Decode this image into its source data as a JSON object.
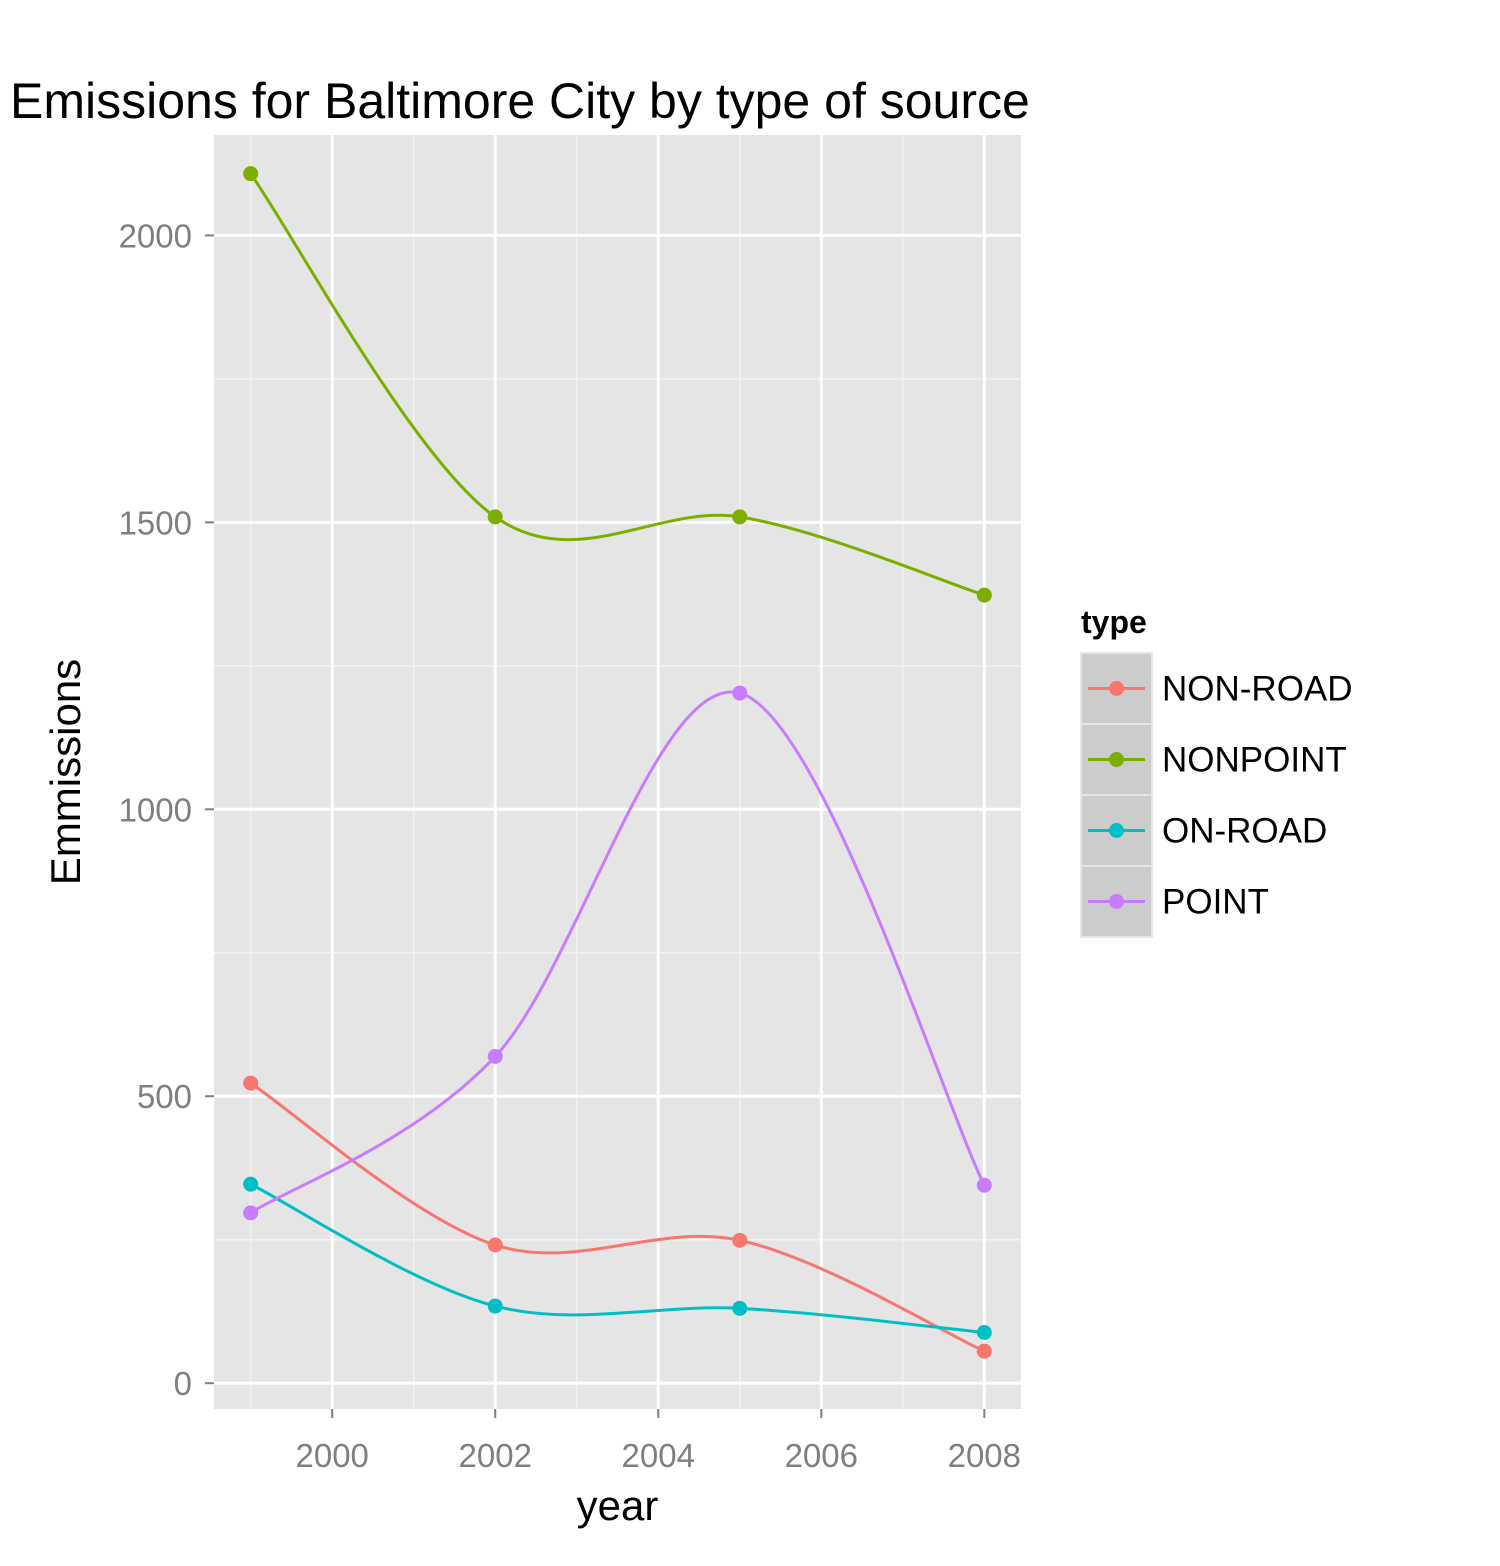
{
  "chart_data": {
    "type": "line",
    "title": "Emissions for Baltimore City by type of source",
    "xlabel": "year",
    "ylabel": "Emmissions",
    "x": [
      1999,
      2002,
      2005,
      2008
    ],
    "xlim": [
      1998.55,
      2008.45
    ],
    "ylim": [
      -45,
      2175
    ],
    "x_ticks": [
      2000,
      2002,
      2004,
      2006,
      2008
    ],
    "y_ticks": [
      0,
      500,
      1000,
      1500,
      2000
    ],
    "grid": true,
    "smoothed": true,
    "legend_title": "type",
    "legend_position": "right",
    "series": [
      {
        "name": "NON-ROAD",
        "color": "#F8766D",
        "values": [
          522.9,
          240.8,
          248.9,
          55.8
        ]
      },
      {
        "name": "NONPOINT",
        "color": "#7CAE00",
        "values": [
          2107.6,
          1509.5,
          1509.5,
          1373.2
        ]
      },
      {
        "name": "ON-ROAD",
        "color": "#00BFC4",
        "values": [
          346.8,
          134.3,
          130.4,
          88.3
        ]
      },
      {
        "name": "POINT",
        "color": "#C77CFF",
        "values": [
          296.8,
          569.3,
          1202.5,
          344.98
        ]
      }
    ]
  }
}
